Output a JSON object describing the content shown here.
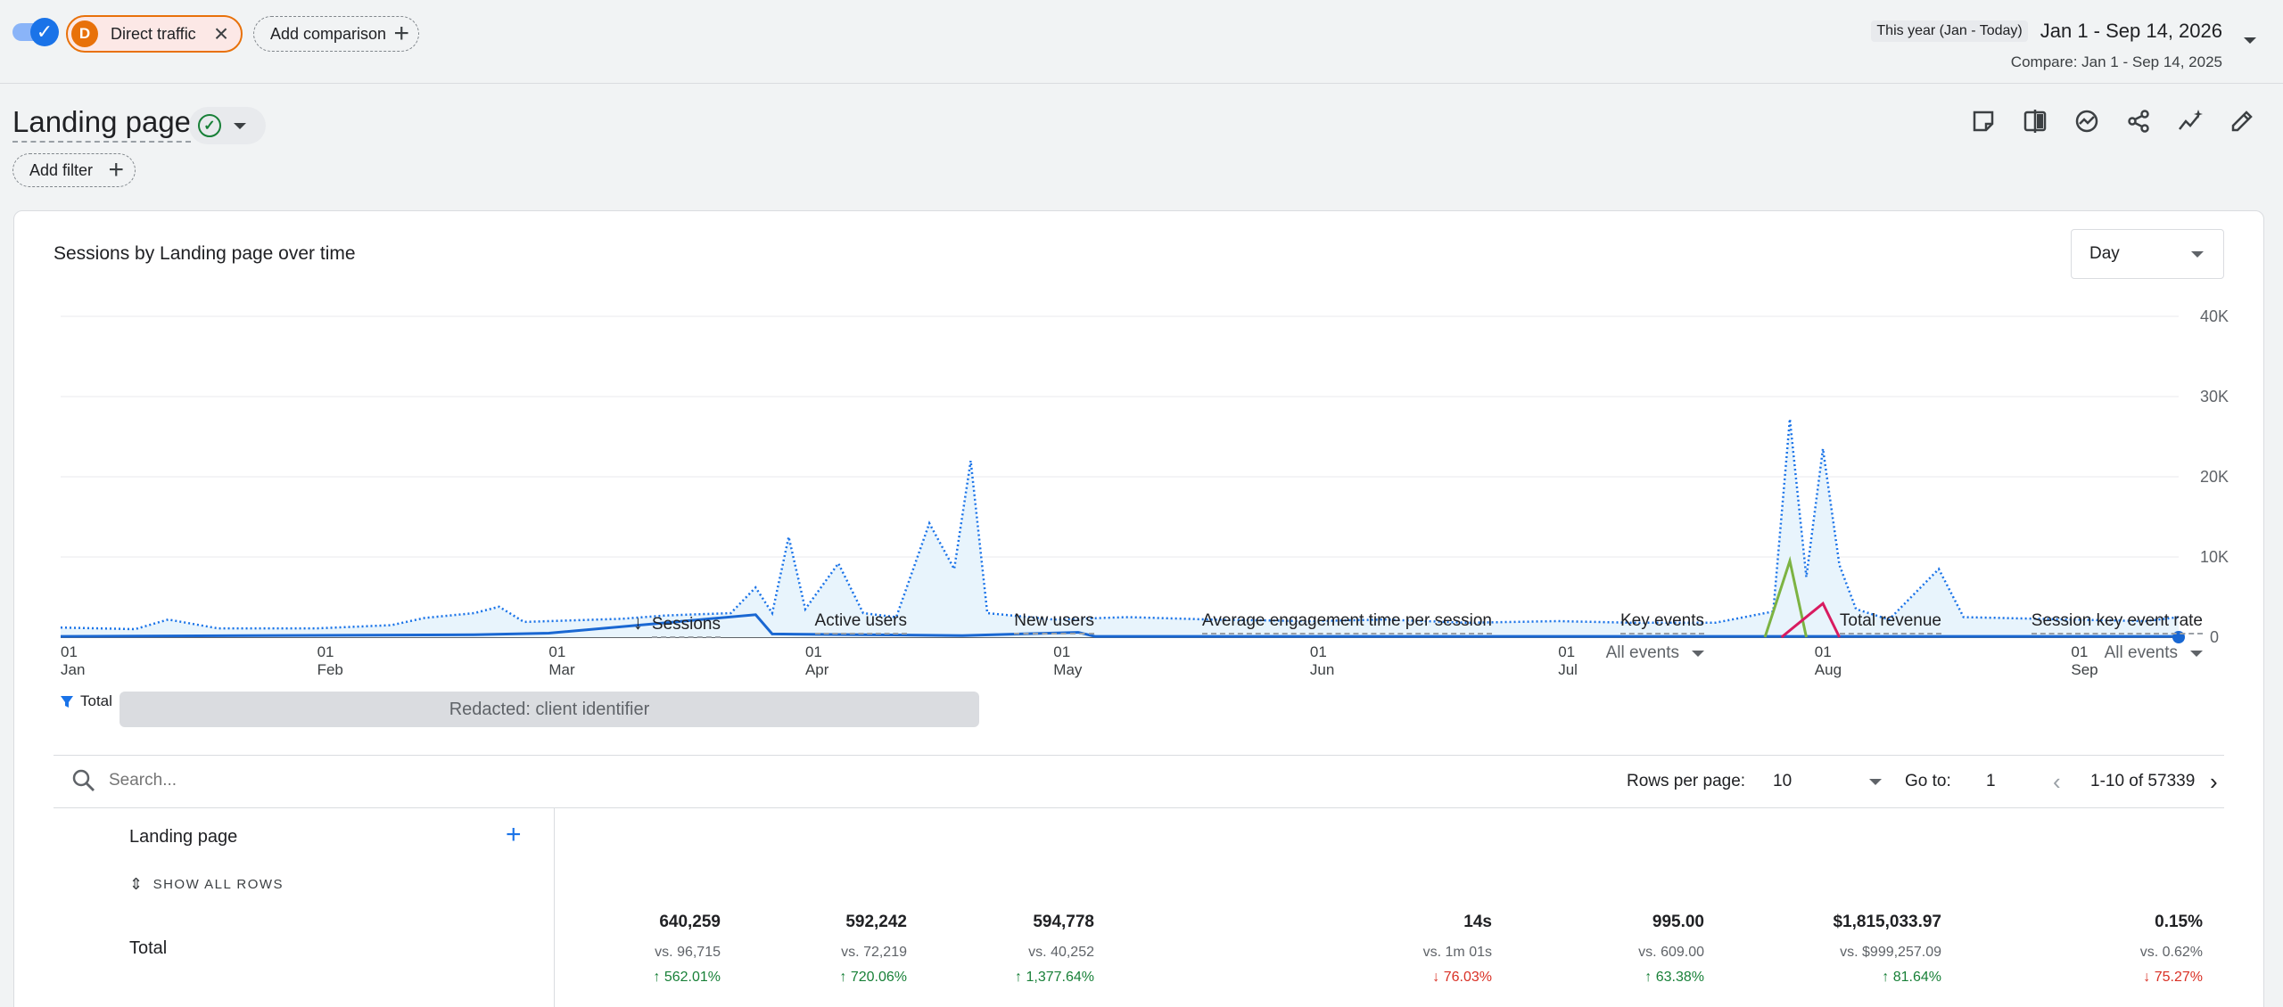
{
  "top": {
    "comparison_chip_letter": "D",
    "comparison_chip_label": "Direct traffic",
    "add_comparison_label": "Add comparison",
    "date_pill": "This year (Jan - Today)",
    "date_range": "Jan 1 - Sep 14, 2026",
    "compare_range": "Compare: Jan 1 - Sep 14, 2025"
  },
  "header": {
    "title": "Landing page",
    "add_filter_label": "Add filter"
  },
  "toolbar_icons": [
    "annotation-icon",
    "compare-icon",
    "insights-icon",
    "share-icon",
    "explore-icon",
    "edit-icon"
  ],
  "chart": {
    "title": "Sessions by Landing page over time",
    "granularity": "Day",
    "legend_total": "Total",
    "redacted_text": "Redacted: client identifier"
  },
  "chart_data": {
    "type": "line",
    "title": "Sessions by Landing page over time",
    "x_ticks": [
      {
        "day": "01",
        "month": "Jan"
      },
      {
        "day": "01",
        "month": "Feb"
      },
      {
        "day": "01",
        "month": "Mar"
      },
      {
        "day": "01",
        "month": "Apr"
      },
      {
        "day": "01",
        "month": "May"
      },
      {
        "day": "01",
        "month": "Jun"
      },
      {
        "day": "01",
        "month": "Jul"
      },
      {
        "day": "01",
        "month": "Aug"
      },
      {
        "day": "01",
        "month": "Sep"
      }
    ],
    "y_ticks": [
      "40K",
      "30K",
      "20K",
      "10K",
      "0"
    ],
    "ylim": [
      0,
      40000
    ],
    "series": [
      {
        "name": "Total",
        "style": "dotted-area",
        "color": "#1a73e8",
        "points": [
          {
            "x": "2026-01-01",
            "y": 1200
          },
          {
            "x": "2026-01-10",
            "y": 1000
          },
          {
            "x": "2026-01-14",
            "y": 2200
          },
          {
            "x": "2026-01-20",
            "y": 1100
          },
          {
            "x": "2026-02-01",
            "y": 1100
          },
          {
            "x": "2026-02-10",
            "y": 1500
          },
          {
            "x": "2026-02-14",
            "y": 2400
          },
          {
            "x": "2026-02-20",
            "y": 3000
          },
          {
            "x": "2026-02-23",
            "y": 3800
          },
          {
            "x": "2026-02-26",
            "y": 1900
          },
          {
            "x": "2026-03-01",
            "y": 2000
          },
          {
            "x": "2026-03-10",
            "y": 2300
          },
          {
            "x": "2026-03-15",
            "y": 2700
          },
          {
            "x": "2026-03-23",
            "y": 3000
          },
          {
            "x": "2026-03-26",
            "y": 6200
          },
          {
            "x": "2026-03-28",
            "y": 3000
          },
          {
            "x": "2026-03-30",
            "y": 12500
          },
          {
            "x": "2026-04-01",
            "y": 3500
          },
          {
            "x": "2026-04-05",
            "y": 9200
          },
          {
            "x": "2026-04-08",
            "y": 3000
          },
          {
            "x": "2026-04-12",
            "y": 2500
          },
          {
            "x": "2026-04-16",
            "y": 14200
          },
          {
            "x": "2026-04-19",
            "y": 8500
          },
          {
            "x": "2026-04-21",
            "y": 22000
          },
          {
            "x": "2026-04-23",
            "y": 3000
          },
          {
            "x": "2026-05-01",
            "y": 2200
          },
          {
            "x": "2026-05-10",
            "y": 2500
          },
          {
            "x": "2026-05-20",
            "y": 2200
          },
          {
            "x": "2026-06-01",
            "y": 2000
          },
          {
            "x": "2026-06-10",
            "y": 2200
          },
          {
            "x": "2026-06-20",
            "y": 1800
          },
          {
            "x": "2026-07-01",
            "y": 2000
          },
          {
            "x": "2026-07-10",
            "y": 1800
          },
          {
            "x": "2026-07-20",
            "y": 1800
          },
          {
            "x": "2026-07-27",
            "y": 3200
          },
          {
            "x": "2026-07-29",
            "y": 27200
          },
          {
            "x": "2026-07-31",
            "y": 7500
          },
          {
            "x": "2026-08-02",
            "y": 23500
          },
          {
            "x": "2026-08-04",
            "y": 9000
          },
          {
            "x": "2026-08-06",
            "y": 3500
          },
          {
            "x": "2026-08-10",
            "y": 2200
          },
          {
            "x": "2026-08-16",
            "y": 8500
          },
          {
            "x": "2026-08-19",
            "y": 2500
          },
          {
            "x": "2026-09-01",
            "y": 2200
          },
          {
            "x": "2026-09-10",
            "y": 2000
          },
          {
            "x": "2026-09-14",
            "y": 2500
          }
        ]
      },
      {
        "name": "Direct traffic",
        "style": "solid",
        "color": "#1967d2",
        "points": [
          {
            "x": "2026-01-01",
            "y": 100
          },
          {
            "x": "2026-02-20",
            "y": 300
          },
          {
            "x": "2026-03-01",
            "y": 500
          },
          {
            "x": "2026-03-26",
            "y": 2800
          },
          {
            "x": "2026-03-28",
            "y": 400
          },
          {
            "x": "2026-04-20",
            "y": 200
          },
          {
            "x": "2026-05-04",
            "y": 600
          },
          {
            "x": "2026-05-06",
            "y": 100
          },
          {
            "x": "2026-09-14",
            "y": 100
          }
        ]
      },
      {
        "name": "",
        "style": "solid",
        "color": "#7cb342",
        "points": [
          {
            "x": "2026-07-26",
            "y": 0
          },
          {
            "x": "2026-07-29",
            "y": 9500
          },
          {
            "x": "2026-07-31",
            "y": 0
          }
        ]
      },
      {
        "name": "",
        "style": "solid",
        "color": "#d81b60",
        "points": [
          {
            "x": "2026-07-28",
            "y": 0
          },
          {
            "x": "2026-08-02",
            "y": 4200
          },
          {
            "x": "2026-08-04",
            "y": 0
          }
        ]
      }
    ]
  },
  "table_bar": {
    "search_placeholder": "Search...",
    "rows_per_page_label": "Rows per page:",
    "rows_per_page_value": "10",
    "goto_label": "Go to:",
    "goto_value": "1",
    "range_label": "1-10 of 57339"
  },
  "table": {
    "dimension_header": "Landing page",
    "show_all_rows": "SHOW ALL ROWS",
    "total_label": "Total",
    "metrics": [
      {
        "header": "Sessions",
        "sub": "",
        "value": "640,259",
        "vs": "vs. 96,715",
        "change": "562.01%",
        "direction": "up"
      },
      {
        "header": "Active users",
        "sub": "",
        "value": "592,242",
        "vs": "vs. 72,219",
        "change": "720.06%",
        "direction": "up"
      },
      {
        "header": "New users",
        "sub": "",
        "value": "594,778",
        "vs": "vs. 40,252",
        "change": "1,377.64%",
        "direction": "up"
      },
      {
        "header": "Average engagement time per session",
        "sub": "",
        "value": "14s",
        "vs": "vs. 1m 01s",
        "change": "76.03%",
        "direction": "down"
      },
      {
        "header": "Key events",
        "sub": "All events",
        "value": "995.00",
        "vs": "vs. 609.00",
        "change": "63.38%",
        "direction": "up"
      },
      {
        "header": "Total revenue",
        "sub": "",
        "value": "$1,815,033.97",
        "vs": "vs. $999,257.09",
        "change": "81.64%",
        "direction": "up"
      },
      {
        "header": "Session key event rate",
        "sub": "All events",
        "value": "0.15%",
        "vs": "vs. 0.62%",
        "change": "75.27%",
        "direction": "down"
      }
    ]
  }
}
